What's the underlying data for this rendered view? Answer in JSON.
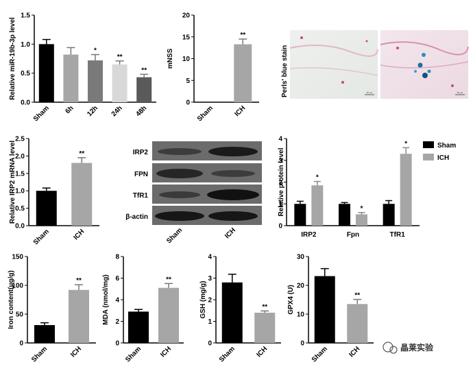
{
  "colors": {
    "black": "#000000",
    "gray_dark": "#7a7a7a",
    "gray_mid": "#9b9b9b",
    "gray_light": "#d8d8d8",
    "gray_bar": "#a6a6a6"
  },
  "chart_data": [
    {
      "id": "mir19b",
      "type": "bar",
      "ylabel": "Relative miR-19b-3p level",
      "categories": [
        "Sham",
        "6h",
        "12h",
        "24h",
        "48h"
      ],
      "values": [
        1.0,
        0.82,
        0.72,
        0.65,
        0.43
      ],
      "errors": [
        0.08,
        0.12,
        0.1,
        0.06,
        0.05
      ],
      "stars": [
        "",
        "",
        "*",
        "**",
        "**"
      ],
      "colors": [
        "#000000",
        "#a6a6a6",
        "#7a7a7a",
        "#d8d8d8",
        "#5a5a5a"
      ],
      "ylim": [
        0,
        1.5
      ],
      "yticks": [
        "0.0",
        "0.5",
        "1.0",
        "1.5"
      ]
    },
    {
      "id": "mnss",
      "type": "bar",
      "ylabel": "mNSS",
      "categories": [
        "Sham",
        "ICH"
      ],
      "values": [
        0,
        13.3
      ],
      "errors": [
        0,
        1.2
      ],
      "stars": [
        "",
        "**"
      ],
      "colors": [
        "#000000",
        "#a6a6a6"
      ],
      "ylim": [
        0,
        20
      ],
      "yticks": [
        "0",
        "5",
        "10",
        "15",
        "20"
      ]
    },
    {
      "id": "irp2mrna",
      "type": "bar",
      "ylabel": "Relative IRP2  mRNA level",
      "categories": [
        "Sham",
        "ICH"
      ],
      "values": [
        1.0,
        1.8
      ],
      "errors": [
        0.08,
        0.15
      ],
      "stars": [
        "",
        "**"
      ],
      "colors": [
        "#000000",
        "#a6a6a6"
      ],
      "ylim": [
        0,
        2.5
      ],
      "yticks": [
        "0.0",
        "0.5",
        "1.0",
        "1.5",
        "2.0",
        "2.5"
      ]
    },
    {
      "id": "protein",
      "type": "bar",
      "ylabel": "Relative protein level",
      "categories": [
        "IRP2",
        "Fpn",
        "TfR1"
      ],
      "series": [
        {
          "name": "Sham",
          "values": [
            1.0,
            1.0,
            1.0
          ],
          "errors": [
            0.12,
            0.06,
            0.15
          ],
          "stars": [
            "",
            "",
            ""
          ]
        },
        {
          "name": "ICH",
          "values": [
            1.85,
            0.52,
            3.3
          ],
          "errors": [
            0.18,
            0.08,
            0.28
          ],
          "stars": [
            "*",
            "*",
            "*"
          ]
        }
      ],
      "colors": [
        "#000000",
        "#a6a6a6"
      ],
      "ylim": [
        0,
        4
      ],
      "yticks": [
        "0",
        "1",
        "2",
        "3",
        "4"
      ],
      "legend": "top-right"
    },
    {
      "id": "iron",
      "type": "bar",
      "ylabel": "Iron content(μg/g)",
      "categories": [
        "Sham",
        "ICH"
      ],
      "values": [
        31,
        92
      ],
      "errors": [
        4,
        9
      ],
      "stars": [
        "",
        "**"
      ],
      "colors": [
        "#000000",
        "#a6a6a6"
      ],
      "ylim": [
        0,
        150
      ],
      "yticks": [
        "0",
        "50",
        "100",
        "150"
      ]
    },
    {
      "id": "mda",
      "type": "bar",
      "ylabel": "MDA (nmol/mg)",
      "categories": [
        "Sham",
        "ICH"
      ],
      "values": [
        2.9,
        5.1
      ],
      "errors": [
        0.2,
        0.4
      ],
      "stars": [
        "",
        "**"
      ],
      "colors": [
        "#000000",
        "#a6a6a6"
      ],
      "ylim": [
        0,
        8
      ],
      "yticks": [
        "0",
        "2",
        "4",
        "6",
        "8"
      ]
    },
    {
      "id": "gsh",
      "type": "bar",
      "ylabel": "GSH (mg/g)",
      "categories": [
        "Sham",
        "ICH"
      ],
      "values": [
        2.8,
        1.4
      ],
      "errors": [
        0.38,
        0.08
      ],
      "stars": [
        "",
        "**"
      ],
      "colors": [
        "#000000",
        "#a6a6a6"
      ],
      "ylim": [
        0,
        4
      ],
      "yticks": [
        "0",
        "1",
        "2",
        "3",
        "4"
      ]
    },
    {
      "id": "gpx4",
      "type": "bar",
      "ylabel": "GPX4  (U)",
      "categories": [
        "Sham",
        "ICH"
      ],
      "values": [
        23.2,
        13.5
      ],
      "errors": [
        2.6,
        1.6
      ],
      "stars": [
        "",
        "**"
      ],
      "colors": [
        "#000000",
        "#a6a6a6"
      ],
      "ylim": [
        0,
        30
      ],
      "yticks": [
        "0",
        "10",
        "20",
        "30"
      ]
    }
  ],
  "perls": {
    "label": "Perls' blue stain",
    "scale_left": "50 μm",
    "scale_right": "50 μm"
  },
  "blot": {
    "rows": [
      "IRP2",
      "FPN",
      "TfR1",
      "β-actin"
    ],
    "columns": [
      "Sham",
      "ICH"
    ]
  },
  "watermark": {
    "text": "晶莱实验"
  }
}
